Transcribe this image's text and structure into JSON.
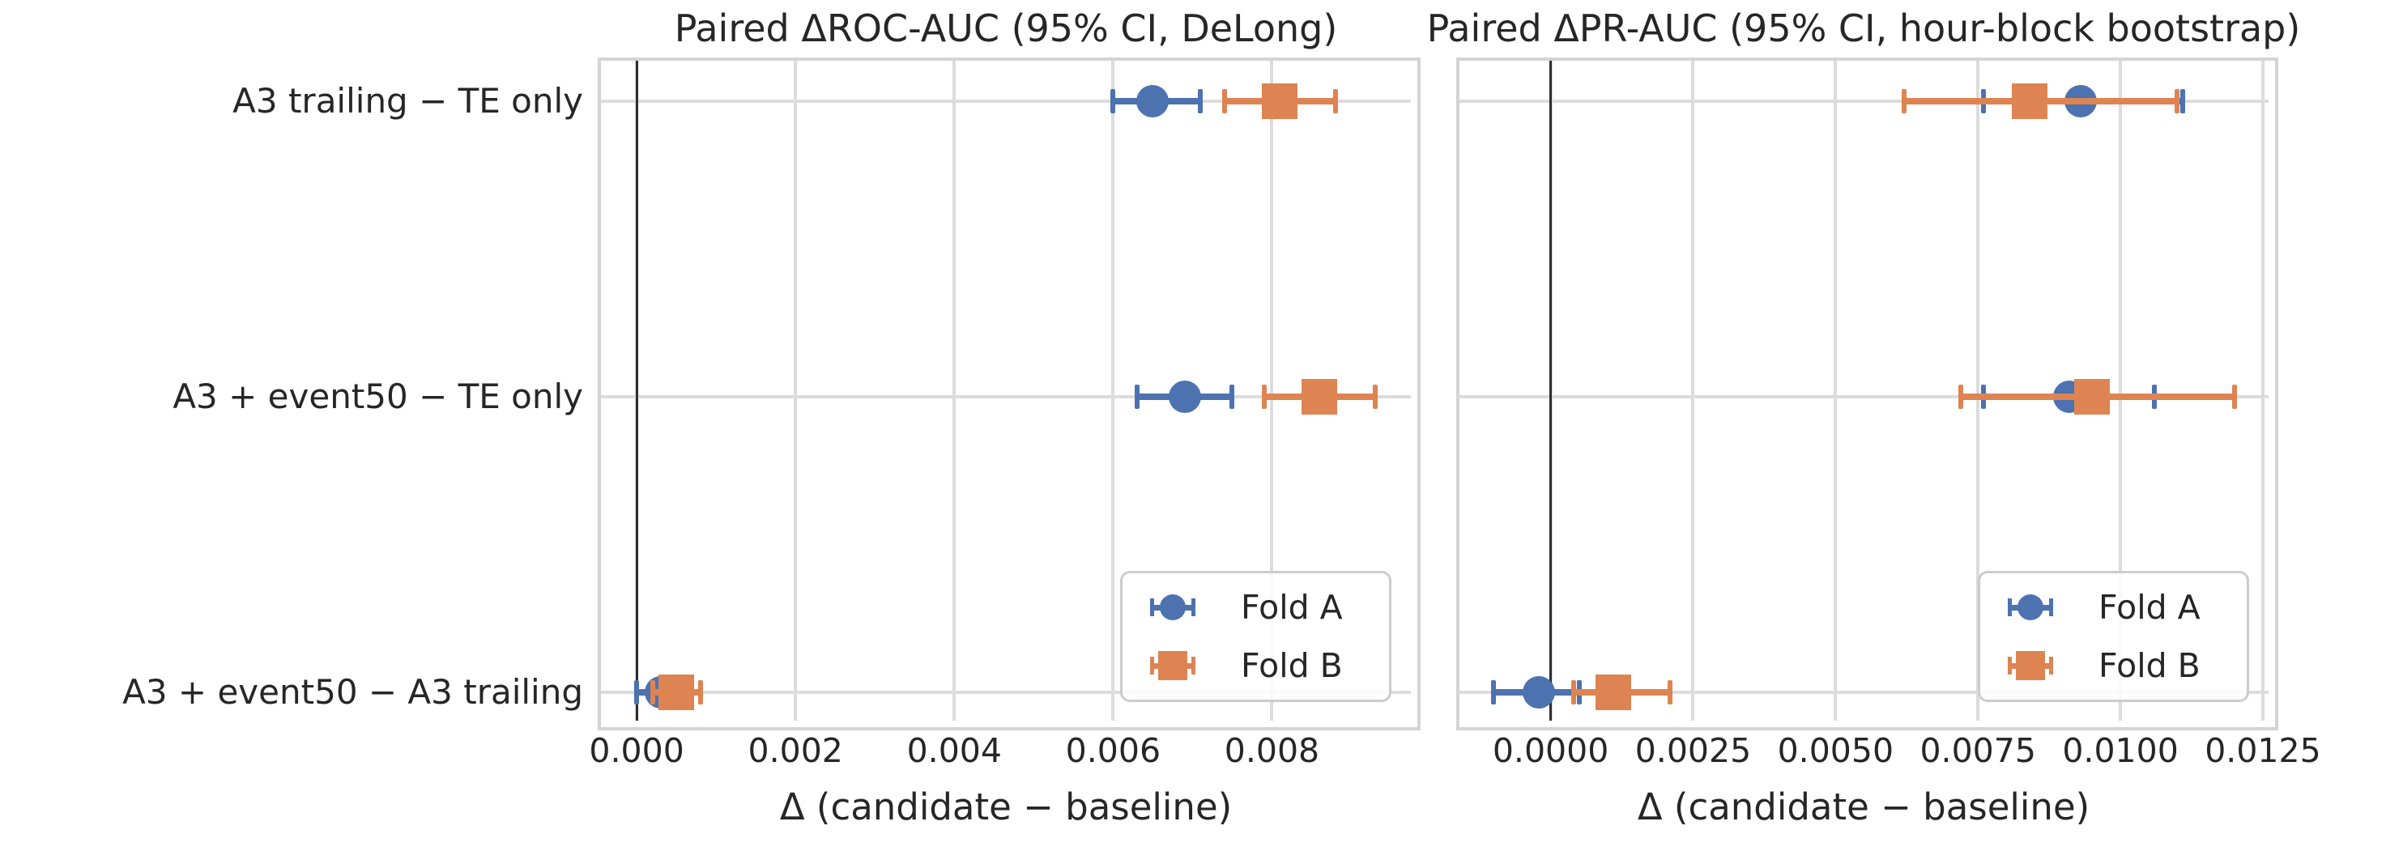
{
  "figure": {
    "background": "#ffffff",
    "text_color": "#262626",
    "grid_color": "#dcdcdc",
    "spine_color": "#d4d4d4",
    "zero_line_color": "#2e2e2e"
  },
  "legend": {
    "entries": [
      {
        "label": "Fold A",
        "marker": "circle",
        "color": "#4C72B0"
      },
      {
        "label": "Fold B",
        "marker": "square",
        "color": "#DD8452"
      }
    ]
  },
  "chart_data": [
    {
      "type": "scatter",
      "title": "Paired ΔROC-AUC (95% CI, DeLong)",
      "xlabel": "Δ (candidate − baseline)",
      "categories": [
        "A3 trailing − TE only",
        "A3 + event50 − TE only",
        "A3 + event50 − A3 trailing"
      ],
      "show_ylabels": true,
      "grid": true,
      "legend_position": "lower right",
      "xlim": [
        -0.00045,
        0.00975
      ],
      "xticks": [
        0.0,
        0.002,
        0.004,
        0.006,
        0.008
      ],
      "xtick_labels": [
        "0.000",
        "0.002",
        "0.004",
        "0.006",
        "0.008"
      ],
      "zero_reference_line": 0.0,
      "series": [
        {
          "name": "Fold A",
          "marker": "circle",
          "color": "#4C72B0",
          "values": [
            0.0065,
            0.0069,
            0.0003
          ],
          "ci_low": [
            0.006,
            0.0063,
            0.0
          ],
          "ci_high": [
            0.0071,
            0.0075,
            0.0006
          ]
        },
        {
          "name": "Fold B",
          "marker": "square",
          "color": "#DD8452",
          "values": [
            0.0081,
            0.0086,
            0.0005
          ],
          "ci_low": [
            0.0074,
            0.0079,
            0.0002
          ],
          "ci_high": [
            0.0088,
            0.0093,
            0.0008
          ]
        }
      ]
    },
    {
      "type": "scatter",
      "title": "Paired ΔPR-AUC (95% CI, hour-block bootstrap)",
      "xlabel": "Δ (candidate − baseline)",
      "categories": [
        "A3 trailing − TE only",
        "A3 + event50 − TE only",
        "A3 + event50 − A3 trailing"
      ],
      "show_ylabels": false,
      "grid": true,
      "legend_position": "lower right",
      "xlim": [
        -0.0016,
        0.0126
      ],
      "xticks": [
        0.0,
        0.0025,
        0.005,
        0.0075,
        0.01,
        0.0125
      ],
      "xtick_labels": [
        "0.0000",
        "0.0025",
        "0.0050",
        "0.0075",
        "0.0100",
        "0.0125"
      ],
      "zero_reference_line": 0.0,
      "series": [
        {
          "name": "Fold A",
          "marker": "circle",
          "color": "#4C72B0",
          "values": [
            0.0093,
            0.0091,
            -0.0002
          ],
          "ci_low": [
            0.0076,
            0.0076,
            -0.001
          ],
          "ci_high": [
            0.0111,
            0.0106,
            0.0005
          ]
        },
        {
          "name": "Fold B",
          "marker": "square",
          "color": "#DD8452",
          "values": [
            0.0084,
            0.0095,
            0.0011
          ],
          "ci_low": [
            0.0062,
            0.0072,
            0.0004
          ],
          "ci_high": [
            0.011,
            0.012,
            0.0021
          ]
        }
      ]
    }
  ]
}
